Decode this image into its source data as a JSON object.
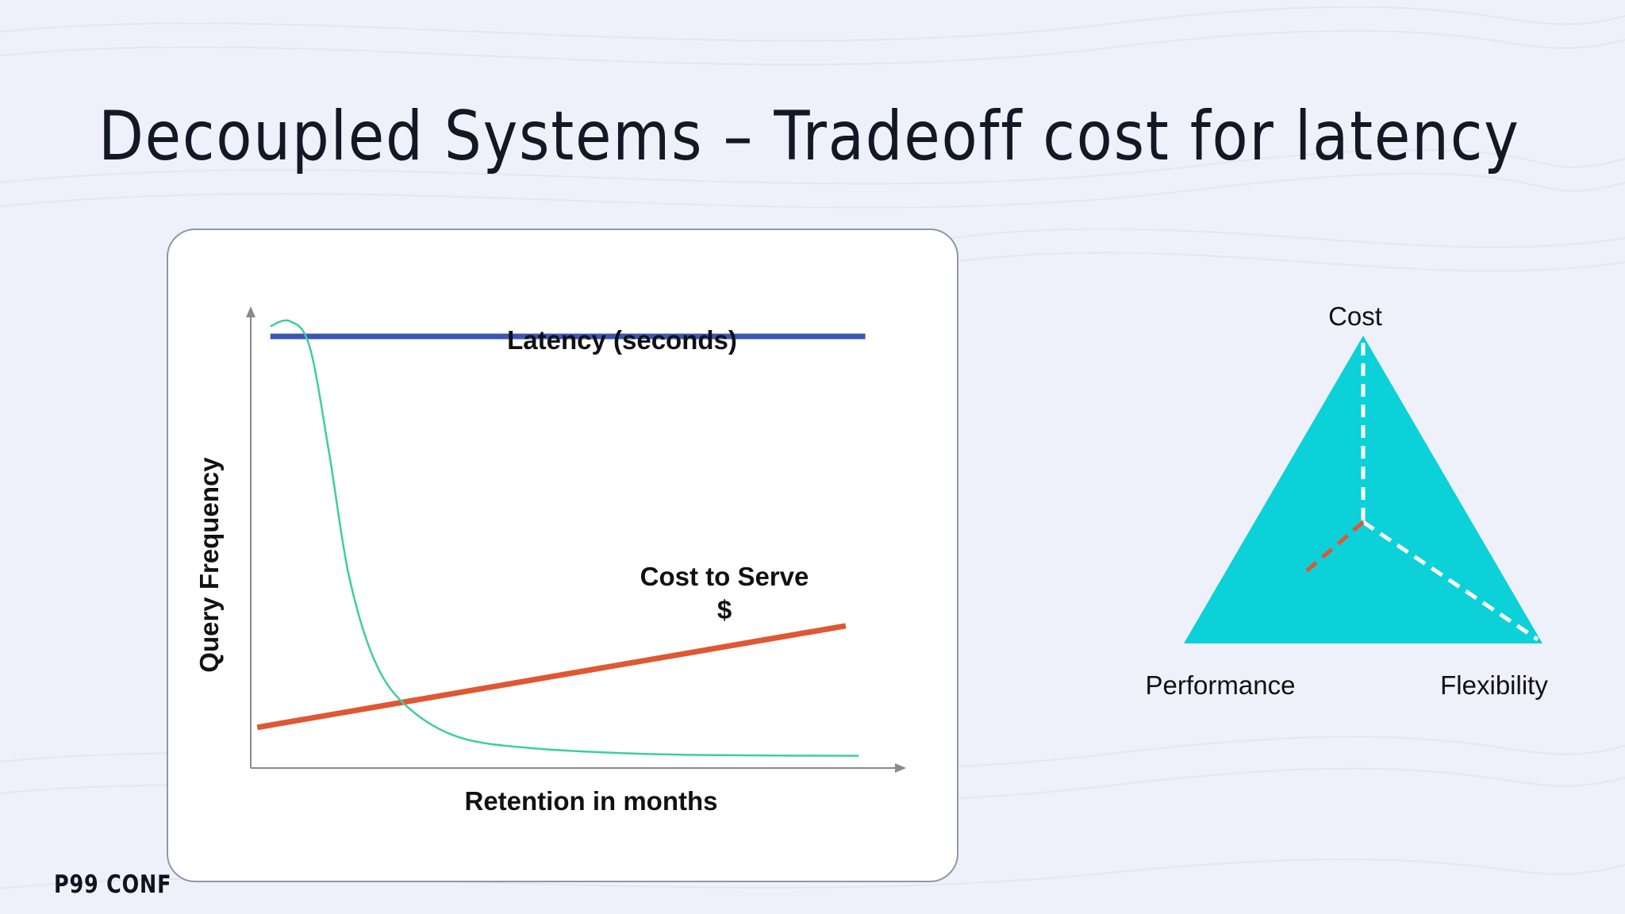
{
  "slide": {
    "title": "Decoupled Systems – Tradeoff cost for latency"
  },
  "chart_data": {
    "type": "line",
    "xlabel": "Retention in months",
    "ylabel": "Query Frequency",
    "series": [
      {
        "name": "Latency (seconds)",
        "color": "#3b55b6",
        "points": [
          [
            0.03,
            0.85
          ],
          [
            0.94,
            0.85
          ]
        ]
      },
      {
        "name": "Cost to Serve",
        "subtitle": "$",
        "color": "#e05733",
        "points": [
          [
            0.01,
            0.08
          ],
          [
            0.91,
            0.28
          ]
        ]
      },
      {
        "name": "Query Frequency",
        "color": "#3ccf9c",
        "points": [
          [
            0.03,
            0.87
          ],
          [
            0.06,
            0.88
          ],
          [
            0.09,
            0.83
          ],
          [
            0.12,
            0.62
          ],
          [
            0.15,
            0.38
          ],
          [
            0.19,
            0.21
          ],
          [
            0.24,
            0.12
          ],
          [
            0.32,
            0.06
          ],
          [
            0.44,
            0.038
          ],
          [
            0.6,
            0.028
          ],
          [
            0.75,
            0.025
          ],
          [
            0.93,
            0.024
          ]
        ]
      }
    ],
    "annotations": {
      "latency_label": "Latency (seconds)",
      "cost_label": "Cost to Serve",
      "cost_symbol": "$"
    }
  },
  "triangle": {
    "fill_color": "#0cd1d9",
    "dash_color": "#ffffff",
    "accent_dash_color": "#e05733",
    "labels": {
      "top": "Cost",
      "bottom_left": "Performance",
      "bottom_right": "Flexibility"
    }
  },
  "footer": {
    "logo_text": "P99 CONF"
  }
}
